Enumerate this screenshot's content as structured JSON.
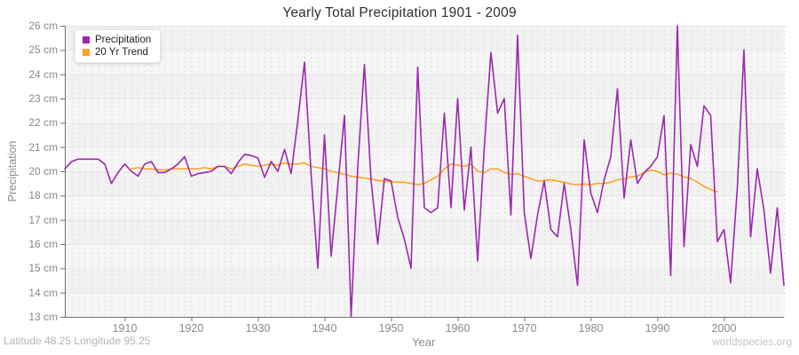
{
  "title": "Yearly Total Precipitation 1901 - 2009",
  "caption": "Latitude 48.25 Longitude 95.25",
  "watermark": "worldspecies.org",
  "legend": {
    "items": [
      {
        "label": "Precipitation",
        "color": "#9C27B0"
      },
      {
        "label": "20 Yr Trend",
        "color": "#FFA125"
      }
    ]
  },
  "y_axis": {
    "label": "Precipitation",
    "tick_labels": [
      "26 cm",
      "25 cm",
      "24 cm",
      "23 cm",
      "22 cm",
      "21 cm",
      "20 cm",
      "18 cm",
      "17 cm",
      "16 cm",
      "15 cm",
      "14 cm",
      "13 cm"
    ],
    "tick_values": [
      26,
      25,
      24,
      23,
      22,
      21,
      20,
      18,
      17,
      16,
      15,
      14,
      13
    ]
  },
  "x_axis": {
    "label": "Year",
    "tick_labels": [
      "1910",
      "1920",
      "1930",
      "1940",
      "1950",
      "1960",
      "1970",
      "1980",
      "1990",
      "2000"
    ],
    "tick_years": [
      1910,
      1920,
      1930,
      1940,
      1950,
      1960,
      1970,
      1980,
      1990,
      2000
    ]
  },
  "colors": {
    "precipitation": "#9C27B0",
    "trend": "#FFA125",
    "plot_bg": "#f2f2f2",
    "plot_bg_alt": "#f6f6f6",
    "h_grid": "#e7e7e7",
    "v_grid": "#dcdcdc",
    "axis": "#707070"
  },
  "chart_data": {
    "type": "line",
    "title": "Yearly Total Precipitation 1901 - 2009",
    "xlabel": "Year",
    "ylabel": "Precipitation",
    "x_range": [
      1901,
      2009
    ],
    "ylim": [
      13,
      26
    ],
    "y_unit": "cm",
    "grid": true,
    "legend_position": "top-left",
    "y_ticks_displayed": [
      26,
      25,
      24,
      23,
      22,
      21,
      20,
      18,
      17,
      16,
      15,
      14,
      13
    ],
    "series": [
      {
        "name": "Precipitation",
        "x_start": 1901,
        "values": [
          20.1,
          20.4,
          20.5,
          20.5,
          20.5,
          20.5,
          20.3,
          19.0,
          19.9,
          20.3,
          20.0,
          19.6,
          20.3,
          20.4,
          19.9,
          19.9,
          20.1,
          20.3,
          20.6,
          19.6,
          19.8,
          19.9,
          20.0,
          20.2,
          20.2,
          19.8,
          20.35,
          20.7,
          20.65,
          20.55,
          19.5,
          20.4,
          20.0,
          20.9,
          19.8,
          22.1,
          24.5,
          19.7,
          15.0,
          21.5,
          15.5,
          18.8,
          22.3,
          13.0,
          20.2,
          24.4,
          19.2,
          16.0,
          19.4,
          19.2,
          17.1,
          16.2,
          15.0,
          24.3,
          17.5,
          17.3,
          17.5,
          22.4,
          17.5,
          23.0,
          17.4,
          21.0,
          15.3,
          21.0,
          24.9,
          22.4,
          23.0,
          17.2,
          25.6,
          17.3,
          15.4,
          17.2,
          19.2,
          16.6,
          16.3,
          19.0,
          16.6,
          14.3,
          21.3,
          18.2,
          17.3,
          19.3,
          20.6,
          23.4,
          17.9,
          21.3,
          19.0,
          19.9,
          20.2,
          20.6,
          22.3,
          14.7,
          26.0,
          15.9,
          21.1,
          20.2,
          22.7,
          22.3,
          16.1,
          16.6,
          14.4,
          18.6,
          25.0,
          16.3,
          20.1,
          17.4,
          14.8,
          17.5,
          14.3
        ]
      },
      {
        "name": "20 Yr Trend",
        "x_start": 1911,
        "values": [
          20.1,
          20.15,
          20.1,
          20.1,
          20.05,
          20.05,
          20.1,
          20.1,
          20.1,
          20.1,
          20.1,
          20.15,
          20.1,
          20.2,
          20.2,
          20.1,
          20.2,
          20.3,
          20.25,
          20.2,
          20.25,
          20.3,
          20.25,
          20.35,
          20.3,
          20.3,
          20.35,
          20.2,
          20.15,
          20.1,
          20.0,
          19.9,
          19.75,
          19.6,
          19.5,
          19.45,
          19.35,
          19.25,
          19.2,
          19.15,
          19.1,
          19.1,
          19.0,
          18.9,
          19.0,
          19.3,
          19.6,
          20.1,
          20.3,
          20.25,
          20.2,
          20.3,
          20.0,
          19.9,
          20.1,
          20.1,
          19.9,
          19.75,
          19.8,
          19.6,
          19.4,
          19.2,
          19.25,
          19.3,
          19.2,
          19.1,
          18.95,
          18.9,
          18.95,
          18.9,
          19.0,
          19.0,
          19.1,
          19.3,
          19.35,
          19.55,
          19.6,
          19.9,
          20.05,
          20.0,
          19.7,
          19.85,
          19.75,
          19.55,
          19.4,
          19.1,
          18.75,
          18.5,
          18.3
        ]
      }
    ]
  }
}
